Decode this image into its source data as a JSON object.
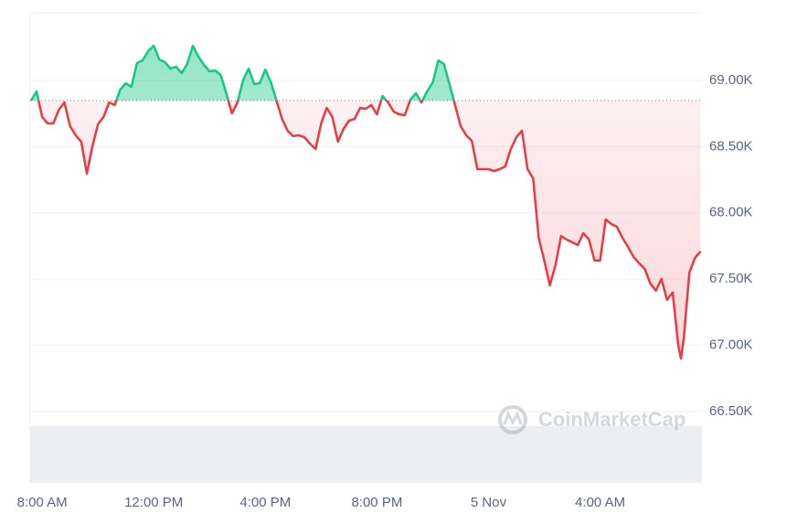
{
  "chart_data": {
    "type": "line",
    "watermark": "CoinMarketCap",
    "baseline": 68848,
    "x": [
      -0.4,
      -0.2,
      0,
      0.2,
      0.4,
      0.6,
      0.8,
      1.0,
      1.2,
      1.4,
      1.6,
      1.8,
      2.0,
      2.2,
      2.4,
      2.6,
      2.8,
      3.0,
      3.2,
      3.4,
      3.6,
      3.8,
      4.0,
      4.2,
      4.4,
      4.6,
      4.8,
      5.0,
      5.2,
      5.4,
      5.6,
      5.8,
      6.0,
      6.2,
      6.4,
      6.6,
      6.8,
      7.0,
      7.2,
      7.4,
      7.6,
      7.8,
      8.0,
      8.2,
      8.4,
      8.6,
      8.8,
      9.0,
      9.2,
      9.4,
      9.6,
      9.8,
      10.0,
      10.2,
      10.4,
      10.6,
      10.8,
      11.0,
      11.2,
      11.4,
      11.6,
      11.8,
      12.0,
      12.2,
      12.4,
      12.6,
      12.8,
      13.0,
      13.2,
      13.4,
      13.6,
      13.8,
      14.0,
      14.2,
      14.4,
      14.6,
      14.8,
      15.0,
      15.2,
      15.4,
      15.6,
      15.8,
      16.0,
      16.2,
      16.4,
      16.6,
      16.8,
      17.0,
      17.2,
      17.4,
      17.6,
      17.8,
      18.0,
      18.2,
      18.4,
      18.6,
      18.8,
      19.0,
      19.2,
      19.4,
      19.6,
      19.8,
      20.0,
      20.2,
      20.4,
      20.6,
      20.8,
      21.0,
      21.2,
      21.4,
      21.6,
      21.8,
      22.0,
      22.2,
      22.4,
      22.6,
      22.8,
      22.9,
      23.0,
      23.2,
      23.4,
      23.6
    ],
    "series": [
      {
        "up_color": "#16c784",
        "down_color": "#ea3943",
        "values": [
          68848,
          68917,
          68724,
          68675,
          68675,
          68779,
          68834,
          68655,
          68586,
          68537,
          68296,
          68503,
          68669,
          68724,
          68834,
          68814,
          68931,
          68979,
          68952,
          69131,
          69152,
          69221,
          69262,
          69159,
          69138,
          69090,
          69104,
          69055,
          69124,
          69262,
          69180,
          69117,
          69069,
          69076,
          69041,
          68903,
          68751,
          68834,
          69000,
          69090,
          68972,
          68979,
          69083,
          68986,
          68848,
          68710,
          68620,
          68579,
          68586,
          68572,
          68523,
          68482,
          68675,
          68793,
          68724,
          68537,
          68634,
          68696,
          68710,
          68793,
          68786,
          68814,
          68744,
          68883,
          68834,
          68765,
          68744,
          68738,
          68855,
          68903,
          68834,
          68917,
          68986,
          69152,
          69124,
          68972,
          68814,
          68655,
          68586,
          68544,
          68330,
          68330,
          68330,
          68316,
          68330,
          68351,
          68482,
          68572,
          68620,
          68330,
          68261,
          67812,
          67640,
          67453,
          67605,
          67826,
          67798,
          67778,
          67757,
          67847,
          67798,
          67640,
          67640,
          67950,
          67916,
          67895,
          67812,
          67743,
          67667,
          67619,
          67577,
          67467,
          67412,
          67501,
          67343,
          67398,
          66997,
          66900,
          67053,
          67550,
          67660,
          67709
        ]
      }
    ],
    "xlim": [
      -0.43,
      23.65
    ],
    "xticks": [
      {
        "value": 0,
        "label": "8:00 AM"
      },
      {
        "value": 4,
        "label": "12:00 PM"
      },
      {
        "value": 8,
        "label": "4:00 PM"
      },
      {
        "value": 12,
        "label": "8:00 PM"
      },
      {
        "value": 16,
        "label": "5 Nov"
      },
      {
        "value": 20,
        "label": "4:00 AM"
      }
    ],
    "ylim": [
      65961,
      69511
    ],
    "yticks": [
      {
        "value": 69000,
        "label": "69.00K"
      },
      {
        "value": 68500,
        "label": "68.50K"
      },
      {
        "value": 68000,
        "label": "68.00K"
      },
      {
        "value": 67500,
        "label": "67.50K"
      },
      {
        "value": 67000,
        "label": "67.00K"
      },
      {
        "value": 66500,
        "label": "66.50K"
      }
    ],
    "grid": true
  }
}
